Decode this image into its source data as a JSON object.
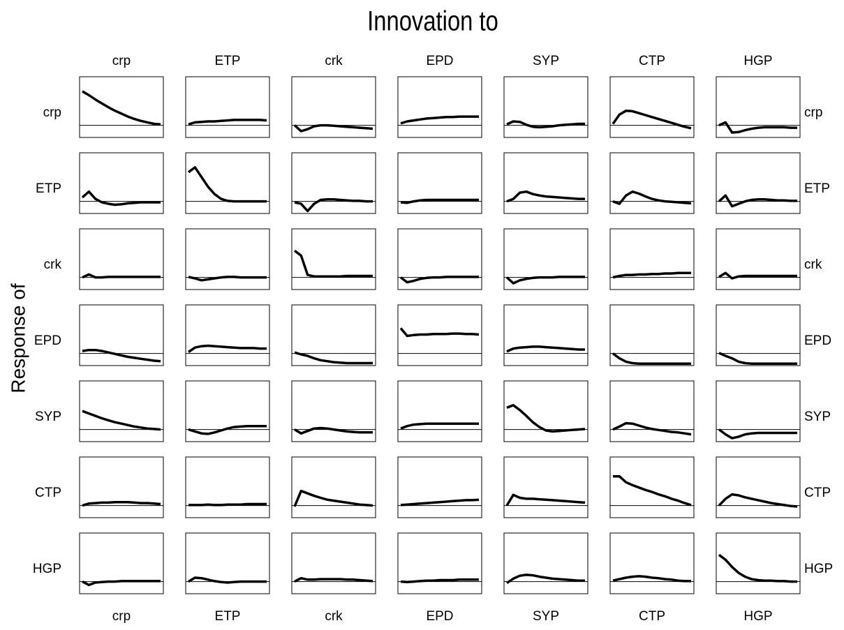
{
  "chart_data": {
    "type": "line",
    "title": "Innovation to",
    "ylabel": "Response of",
    "columns": [
      "crp",
      "ETP",
      "crk",
      "EPD",
      "SYP",
      "CTP",
      "HGP"
    ],
    "rows": [
      "crp",
      "ETP",
      "crk",
      "EPD",
      "SYP",
      "CTP",
      "HGP"
    ],
    "ylim": [
      -0.25,
      1.0
    ],
    "color": "#000000",
    "panels": [
      [
        [
          0.7,
          0.62,
          0.53,
          0.45,
          0.37,
          0.3,
          0.24,
          0.18,
          0.13,
          0.09,
          0.06,
          0.03,
          0.02
        ],
        [
          0.02,
          0.06,
          0.07,
          0.08,
          0.08,
          0.09,
          0.1,
          0.11,
          0.11,
          0.11,
          0.11,
          0.11,
          0.1
        ],
        [
          0,
          -0.12,
          -0.08,
          -0.02,
          0,
          0,
          -0.01,
          -0.02,
          -0.03,
          -0.04,
          -0.05,
          -0.06,
          -0.07
        ],
        [
          0.04,
          0.08,
          0.1,
          0.12,
          0.14,
          0.15,
          0.16,
          0.17,
          0.17,
          0.18,
          0.18,
          0.18,
          0.18
        ],
        [
          0.02,
          0.08,
          0.07,
          0.01,
          -0.03,
          -0.04,
          -0.03,
          -0.02,
          0,
          0.01,
          0.02,
          0.03,
          0.03
        ],
        [
          0.03,
          0.22,
          0.3,
          0.29,
          0.25,
          0.21,
          0.17,
          0.13,
          0.09,
          0.05,
          0.01,
          -0.03,
          -0.06
        ],
        [
          0,
          0.06,
          -0.15,
          -0.14,
          -0.1,
          -0.07,
          -0.05,
          -0.04,
          -0.04,
          -0.04,
          -0.04,
          -0.05,
          -0.05
        ]
      ],
      [
        [
          0.08,
          0.2,
          0.05,
          -0.02,
          -0.05,
          -0.07,
          -0.06,
          -0.04,
          -0.03,
          -0.02,
          -0.02,
          -0.02,
          -0.02
        ],
        [
          0.6,
          0.7,
          0.5,
          0.3,
          0.15,
          0.05,
          0.01,
          0,
          0,
          0,
          0,
          0,
          0
        ],
        [
          -0.02,
          -0.05,
          -0.2,
          -0.05,
          0.03,
          0.04,
          0.04,
          0.03,
          0.02,
          0.01,
          0.01,
          0,
          0
        ],
        [
          -0.02,
          -0.03,
          0,
          0.02,
          0.03,
          0.03,
          0.03,
          0.03,
          0.03,
          0.03,
          0.03,
          0.03,
          0.03
        ],
        [
          0,
          0.05,
          0.18,
          0.2,
          0.15,
          0.12,
          0.1,
          0.09,
          0.08,
          0.07,
          0.06,
          0.05,
          0.05
        ],
        [
          0,
          -0.05,
          0.12,
          0.2,
          0.16,
          0.1,
          0.05,
          0.02,
          0,
          -0.01,
          -0.02,
          -0.03,
          -0.04
        ],
        [
          0,
          0.12,
          -0.1,
          -0.05,
          0,
          0.03,
          0.04,
          0.04,
          0.03,
          0.02,
          0.02,
          0.01,
          0.01
        ]
      ],
      [
        [
          0,
          0.06,
          0,
          0,
          0.01,
          0.01,
          0.01,
          0.01,
          0.01,
          0.01,
          0.01,
          0.01,
          0.01
        ],
        [
          0.01,
          -0.02,
          -0.06,
          -0.04,
          -0.02,
          0,
          0.01,
          0.01,
          0,
          0,
          0,
          0,
          0
        ],
        [
          0.55,
          0.45,
          0.05,
          0.02,
          0.02,
          0.02,
          0.02,
          0.02,
          0.03,
          0.03,
          0.03,
          0.03,
          0.03
        ],
        [
          0,
          -0.1,
          -0.07,
          -0.03,
          -0.01,
          0,
          0,
          0.01,
          0.01,
          0.01,
          0.01,
          0.01,
          0.01
        ],
        [
          0,
          -0.12,
          -0.06,
          -0.03,
          -0.01,
          0,
          0,
          0,
          0.01,
          0.01,
          0.01,
          0.01,
          0.01
        ],
        [
          0,
          0.03,
          0.05,
          0.05,
          0.06,
          0.06,
          0.07,
          0.07,
          0.08,
          0.08,
          0.09,
          0.09,
          0.09
        ],
        [
          0.01,
          0.09,
          -0.02,
          0.02,
          0.03,
          0.03,
          0.03,
          0.03,
          0.03,
          0.03,
          0.03,
          0.03,
          0.03
        ]
      ],
      [
        [
          0.05,
          0.07,
          0.07,
          0.05,
          0.02,
          -0.01,
          -0.04,
          -0.07,
          -0.09,
          -0.11,
          -0.13,
          -0.15,
          -0.16
        ],
        [
          0.03,
          0.12,
          0.15,
          0.16,
          0.15,
          0.14,
          0.13,
          0.12,
          0.11,
          0.11,
          0.11,
          0.1,
          0.1
        ],
        [
          0.02,
          -0.02,
          -0.05,
          -0.1,
          -0.14,
          -0.16,
          -0.18,
          -0.19,
          -0.2,
          -0.2,
          -0.2,
          -0.2,
          -0.2
        ],
        [
          0.52,
          0.36,
          0.38,
          0.39,
          0.39,
          0.4,
          0.4,
          0.4,
          0.41,
          0.41,
          0.4,
          0.4,
          0.39
        ],
        [
          0.04,
          0.1,
          0.12,
          0.13,
          0.14,
          0.14,
          0.13,
          0.12,
          0.11,
          0.1,
          0.09,
          0.08,
          0.08
        ],
        [
          0,
          -0.1,
          -0.17,
          -0.2,
          -0.21,
          -0.21,
          -0.21,
          -0.21,
          -0.21,
          -0.21,
          -0.21,
          -0.21,
          -0.21
        ],
        [
          0.01,
          -0.05,
          -0.1,
          -0.17,
          -0.2,
          -0.21,
          -0.21,
          -0.21,
          -0.21,
          -0.21,
          -0.21,
          -0.21,
          -0.21
        ]
      ],
      [
        [
          0.38,
          0.33,
          0.28,
          0.23,
          0.19,
          0.15,
          0.12,
          0.09,
          0.06,
          0.04,
          0.02,
          0.01,
          0
        ],
        [
          0,
          -0.04,
          -0.08,
          -0.09,
          -0.06,
          -0.02,
          0.02,
          0.05,
          0.06,
          0.07,
          0.07,
          0.07,
          0.07
        ],
        [
          0,
          -0.08,
          -0.03,
          0.02,
          0.03,
          0.02,
          0,
          -0.02,
          -0.04,
          -0.05,
          -0.06,
          -0.06,
          -0.06
        ],
        [
          0.02,
          0.07,
          0.1,
          0.11,
          0.12,
          0.12,
          0.12,
          0.12,
          0.12,
          0.12,
          0.12,
          0.12,
          0.12
        ],
        [
          0.45,
          0.5,
          0.4,
          0.28,
          0.15,
          0.05,
          -0.02,
          -0.04,
          -0.03,
          -0.02,
          -0.01,
          0,
          0.01
        ],
        [
          0,
          0.06,
          0.13,
          0.12,
          0.08,
          0.04,
          0.01,
          -0.01,
          -0.03,
          -0.05,
          -0.06,
          -0.08,
          -0.1
        ],
        [
          0,
          -0.1,
          -0.18,
          -0.15,
          -0.1,
          -0.08,
          -0.07,
          -0.07,
          -0.07,
          -0.07,
          -0.07,
          -0.07,
          -0.07
        ]
      ],
      [
        [
          0,
          0.04,
          0.05,
          0.06,
          0.06,
          0.07,
          0.07,
          0.07,
          0.06,
          0.05,
          0.05,
          0.04,
          0.03
        ],
        [
          0.01,
          0.01,
          0.01,
          0.02,
          0.01,
          0.01,
          0.02,
          0.02,
          0.02,
          0.03,
          0.03,
          0.03,
          0.03
        ],
        [
          -0.02,
          0.3,
          0.25,
          0.2,
          0.16,
          0.12,
          0.1,
          0.08,
          0.06,
          0.04,
          0.02,
          0.01,
          0
        ],
        [
          0.01,
          0.02,
          0.03,
          0.04,
          0.05,
          0.06,
          0.07,
          0.08,
          0.09,
          0.1,
          0.11,
          0.11,
          0.12
        ],
        [
          0,
          0.22,
          0.16,
          0.14,
          0.14,
          0.13,
          0.12,
          0.11,
          0.1,
          0.09,
          0.08,
          0.07,
          0.06
        ],
        [
          0.6,
          0.6,
          0.48,
          0.42,
          0.37,
          0.32,
          0.28,
          0.23,
          0.19,
          0.14,
          0.1,
          0.05,
          0.01
        ],
        [
          0,
          0.14,
          0.23,
          0.21,
          0.17,
          0.14,
          0.11,
          0.08,
          0.05,
          0.03,
          0.01,
          -0.01,
          -0.02
        ]
      ],
      [
        [
          0,
          -0.07,
          -0.02,
          -0.01,
          0,
          0,
          0.01,
          0.01,
          0.01,
          0.01,
          0.01,
          0.01,
          0.01
        ],
        [
          0,
          0.08,
          0.07,
          0.04,
          0.01,
          -0.01,
          -0.02,
          -0.01,
          0,
          0,
          0,
          0,
          0
        ],
        [
          0,
          0.07,
          0.04,
          0.04,
          0.05,
          0.05,
          0.05,
          0.05,
          0.04,
          0.04,
          0.03,
          0.02,
          0.01
        ],
        [
          0,
          -0.01,
          0,
          0.01,
          0.02,
          0.02,
          0.03,
          0.03,
          0.03,
          0.04,
          0.04,
          0.04,
          0.04
        ],
        [
          -0.03,
          0.06,
          0.12,
          0.14,
          0.13,
          0.1,
          0.08,
          0.06,
          0.05,
          0.04,
          0.03,
          0.02,
          0.02
        ],
        [
          0.02,
          0.05,
          0.08,
          0.1,
          0.11,
          0.1,
          0.08,
          0.07,
          0.05,
          0.04,
          0.02,
          0.01,
          0.01
        ],
        [
          0.55,
          0.45,
          0.3,
          0.18,
          0.1,
          0.05,
          0.03,
          0.02,
          0.02,
          0.01,
          0.01,
          0,
          0
        ]
      ]
    ]
  }
}
